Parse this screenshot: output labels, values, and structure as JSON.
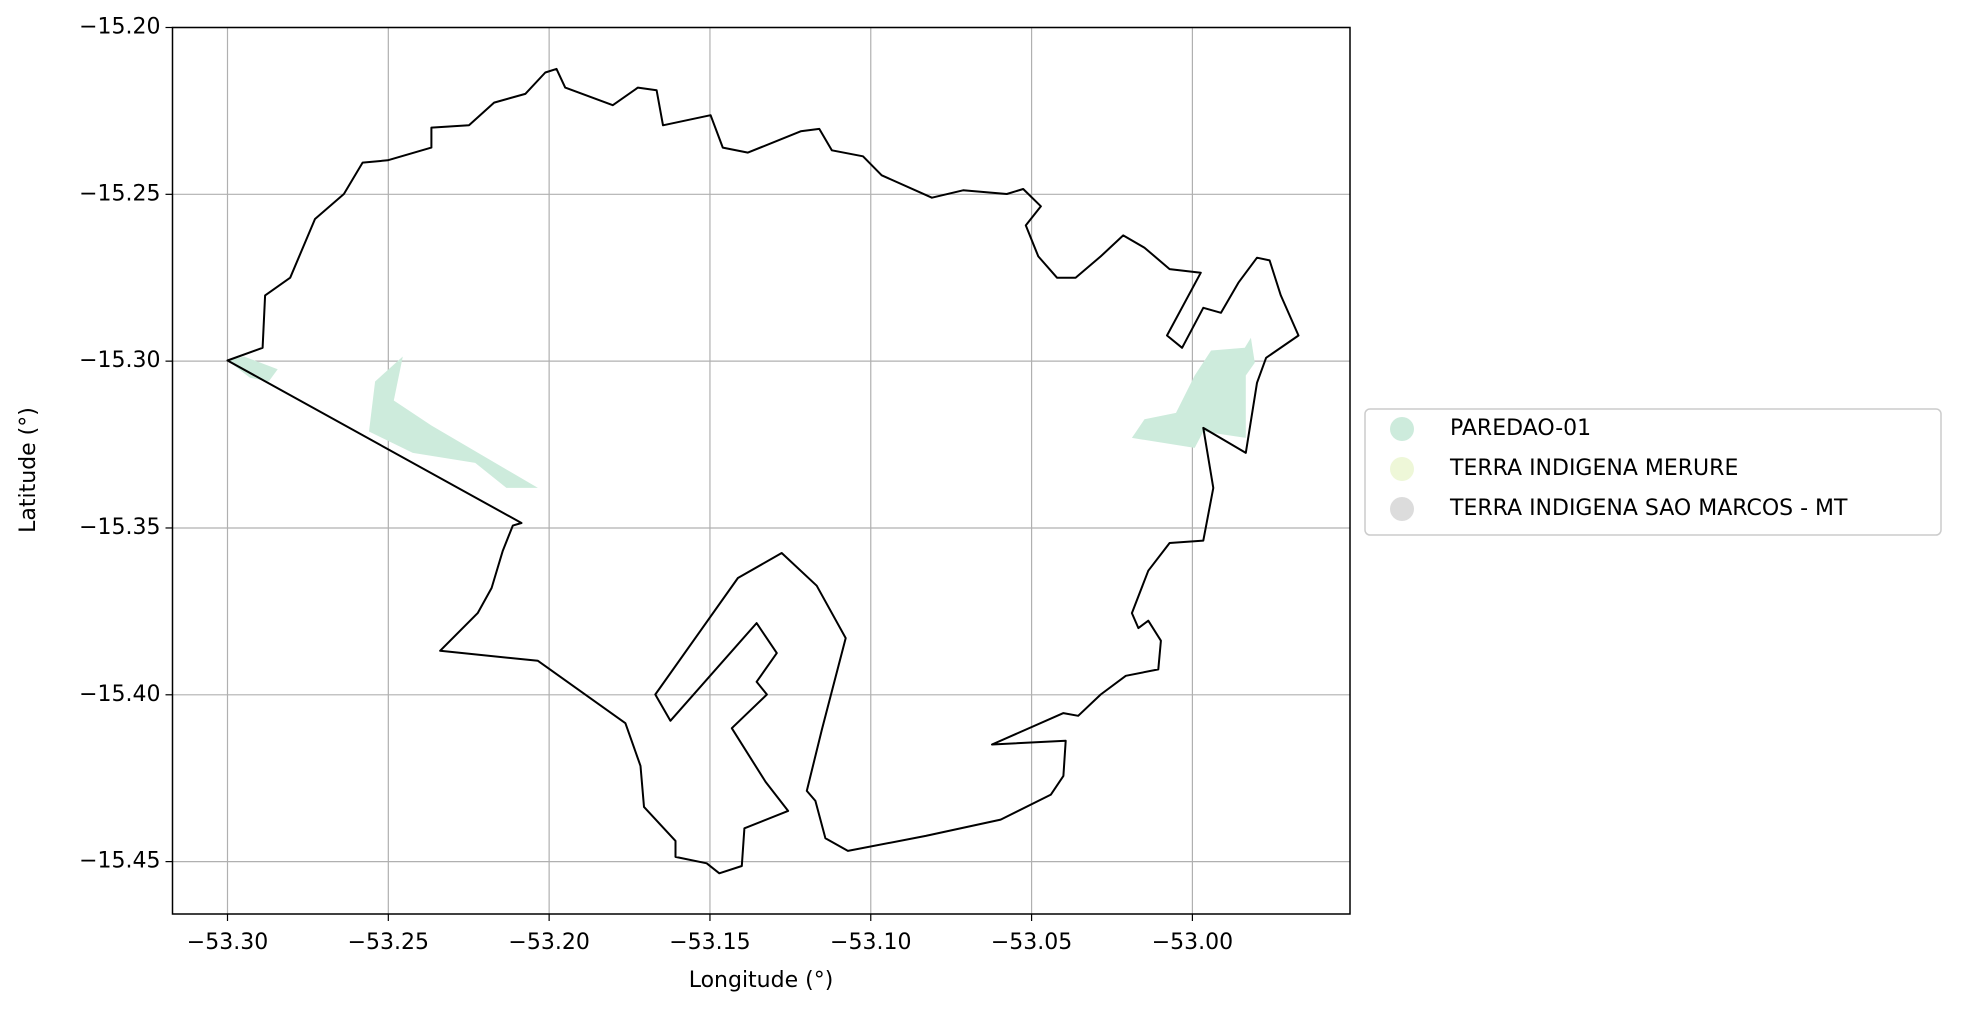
{
  "chart_data": {
    "type": "map",
    "xlabel": "Longitude (°)",
    "ylabel": "Latitude (°)",
    "xlim": [
      -53.3171,
      -52.951
    ],
    "ylim": [
      -15.4657,
      -15.2
    ],
    "xticks": [
      {
        "value": -53.3,
        "label": "−53.30"
      },
      {
        "value": -53.25,
        "label": "−53.25"
      },
      {
        "value": -53.2,
        "label": "−53.20"
      },
      {
        "value": -53.15,
        "label": "−53.15"
      },
      {
        "value": -53.1,
        "label": "−53.10"
      },
      {
        "value": -53.05,
        "label": "−53.05"
      },
      {
        "value": -53.0,
        "label": "−53.00"
      }
    ],
    "yticks": [
      {
        "value": -15.45,
        "label": "−15.45"
      },
      {
        "value": -15.4,
        "label": "−15.40"
      },
      {
        "value": -15.35,
        "label": "−15.35"
      },
      {
        "value": -15.3,
        "label": "−15.30"
      },
      {
        "value": -15.25,
        "label": "−15.25"
      },
      {
        "value": -15.2,
        "label": "−15.20"
      }
    ],
    "grid": true,
    "boundary_color": "#000000",
    "boundary": [
      [
        -53.3,
        -15.2998
      ],
      [
        -53.2891,
        -15.296
      ],
      [
        -53.2883,
        -15.2803
      ],
      [
        -53.2805,
        -15.275
      ],
      [
        -53.2728,
        -15.2574
      ],
      [
        -53.2638,
        -15.2499
      ],
      [
        -53.258,
        -15.2405
      ],
      [
        -53.2502,
        -15.2398
      ],
      [
        -53.2366,
        -15.236
      ],
      [
        -53.2366,
        -15.23
      ],
      [
        -53.2249,
        -15.2293
      ],
      [
        -53.2171,
        -15.2225
      ],
      [
        -53.2074,
        -15.2199
      ],
      [
        -53.2012,
        -15.2135
      ],
      [
        -53.1977,
        -15.2124
      ],
      [
        -53.195,
        -15.218
      ],
      [
        -53.1802,
        -15.2233
      ],
      [
        -53.1724,
        -15.218
      ],
      [
        -53.1666,
        -15.2188
      ],
      [
        -53.1646,
        -15.2293
      ],
      [
        -53.1498,
        -15.2263
      ],
      [
        -53.146,
        -15.236
      ],
      [
        -53.1382,
        -15.2375
      ],
      [
        -53.1218,
        -15.2311
      ],
      [
        -53.116,
        -15.2304
      ],
      [
        -53.1121,
        -15.2368
      ],
      [
        -53.1024,
        -15.2386
      ],
      [
        -53.0966,
        -15.2443
      ],
      [
        -53.081,
        -15.251
      ],
      [
        -53.0713,
        -15.2488
      ],
      [
        -53.0577,
        -15.2499
      ],
      [
        -53.0526,
        -15.2484
      ],
      [
        -53.0471,
        -15.2536
      ],
      [
        -53.0518,
        -15.2593
      ],
      [
        -53.0479,
        -15.2686
      ],
      [
        -53.0421,
        -15.275
      ],
      [
        -53.0363,
        -15.275
      ],
      [
        -53.0285,
        -15.2686
      ],
      [
        -53.0215,
        -15.2623
      ],
      [
        -53.0149,
        -15.266
      ],
      [
        -53.0071,
        -15.2724
      ],
      [
        -52.9974,
        -15.2735
      ],
      [
        -53.0079,
        -15.2923
      ],
      [
        -53.0032,
        -15.296
      ],
      [
        -52.9966,
        -15.284
      ],
      [
        -52.9911,
        -15.2855
      ],
      [
        -52.9857,
        -15.2765
      ],
      [
        -52.9799,
        -15.269
      ],
      [
        -52.976,
        -15.2698
      ],
      [
        -52.9725,
        -15.2803
      ],
      [
        -52.967,
        -15.2923
      ],
      [
        -52.9771,
        -15.299
      ],
      [
        -52.9799,
        -15.3065
      ],
      [
        -52.9834,
        -15.3275
      ],
      [
        -52.9966,
        -15.32
      ],
      [
        -52.9935,
        -15.338
      ],
      [
        -52.9966,
        -15.3538
      ],
      [
        -53.0071,
        -15.3545
      ],
      [
        -53.0137,
        -15.3628
      ],
      [
        -53.0188,
        -15.3755
      ],
      [
        -53.0168,
        -15.38
      ],
      [
        -53.0137,
        -15.3778
      ],
      [
        -53.0098,
        -15.3838
      ],
      [
        -53.0106,
        -15.3924
      ],
      [
        -53.0207,
        -15.3943
      ],
      [
        -53.0285,
        -15.3999
      ],
      [
        -53.0355,
        -15.4063
      ],
      [
        -53.0401,
        -15.4055
      ],
      [
        -53.0623,
        -15.4149
      ],
      [
        -53.0394,
        -15.4138
      ],
      [
        -53.0401,
        -15.4243
      ],
      [
        -53.044,
        -15.4299
      ],
      [
        -53.0596,
        -15.4374
      ],
      [
        -53.0829,
        -15.4423
      ],
      [
        -53.1071,
        -15.4468
      ],
      [
        -53.1141,
        -15.443
      ],
      [
        -53.1172,
        -15.4318
      ],
      [
        -53.1199,
        -15.4288
      ],
      [
        -53.1152,
        -15.4104
      ],
      [
        -53.1078,
        -15.383
      ],
      [
        -53.1168,
        -15.3673
      ],
      [
        -53.1277,
        -15.3575
      ],
      [
        -53.1413,
        -15.365
      ],
      [
        -53.167,
        -15.3999
      ],
      [
        -53.1623,
        -15.4078
      ],
      [
        -53.1355,
        -15.3785
      ],
      [
        -53.1292,
        -15.3875
      ],
      [
        -53.1355,
        -15.3961
      ],
      [
        -53.1323,
        -15.3999
      ],
      [
        -53.1432,
        -15.41
      ],
      [
        -53.1327,
        -15.4261
      ],
      [
        -53.1257,
        -15.4348
      ],
      [
        -53.1393,
        -15.44
      ],
      [
        -53.1401,
        -15.4513
      ],
      [
        -53.1471,
        -15.4535
      ],
      [
        -53.151,
        -15.4505
      ],
      [
        -53.1607,
        -15.4486
      ],
      [
        -53.1607,
        -15.4438
      ],
      [
        -53.1705,
        -15.4336
      ],
      [
        -53.1716,
        -15.4213
      ],
      [
        -53.1763,
        -15.4085
      ],
      [
        -53.2035,
        -15.3898
      ],
      [
        -53.2339,
        -15.3868
      ],
      [
        -53.2222,
        -15.3755
      ],
      [
        -53.2179,
        -15.368
      ],
      [
        -53.2144,
        -15.3568
      ],
      [
        -53.2113,
        -15.3493
      ],
      [
        -53.2086,
        -15.3485
      ]
    ],
    "series": [
      {
        "name": "PAREDAO-01",
        "color": "#cdebdc",
        "polygons": [
          [
            [
              -53.3,
              -15.2998
            ],
            [
              -53.2949,
              -15.2986
            ],
            [
              -53.2844,
              -15.3024
            ],
            [
              -53.2872,
              -15.3061
            ],
            [
              -53.293,
              -15.305
            ]
          ],
          [
            [
              -53.256,
              -15.3211
            ],
            [
              -53.2541,
              -15.3061
            ],
            [
              -53.2455,
              -15.2986
            ],
            [
              -53.2483,
              -15.3118
            ],
            [
              -53.2366,
              -15.3193
            ],
            [
              -53.2035,
              -15.338
            ],
            [
              -53.2133,
              -15.338
            ],
            [
              -53.223,
              -15.3305
            ],
            [
              -53.2424,
              -15.3275
            ]
          ],
          [
            [
              -53.0188,
              -15.323
            ],
            [
              -53.0149,
              -15.3174
            ],
            [
              -53.0051,
              -15.3155
            ],
            [
              -52.9993,
              -15.3043
            ],
            [
              -52.9942,
              -15.2968
            ],
            [
              -52.9837,
              -15.296
            ],
            [
              -52.9818,
              -15.293
            ],
            [
              -52.9806,
              -15.3005
            ],
            [
              -52.9834,
              -15.3043
            ],
            [
              -52.9834,
              -15.323
            ],
            [
              -52.9966,
              -15.3211
            ],
            [
              -52.9993,
              -15.326
            ]
          ]
        ]
      },
      {
        "name": "TERRA INDIGENA MERURE",
        "color": "#eef7d8"
      },
      {
        "name": "TERRA INDIGENA SAO MARCOS - MT",
        "color": "#dcdcdc"
      }
    ]
  }
}
